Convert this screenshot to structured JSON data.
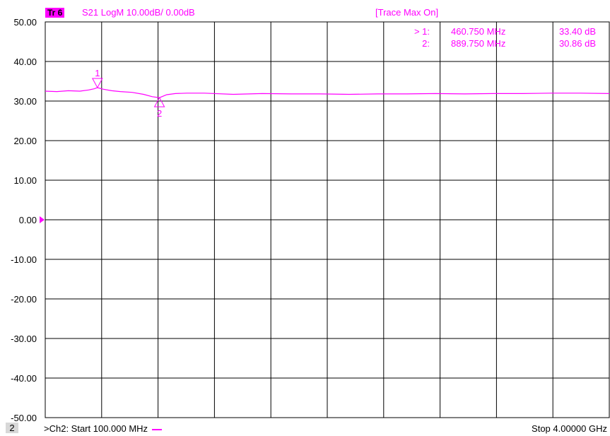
{
  "header": {
    "trace_badge": "Tr 6",
    "trace_label": "S21 LogM 10.00dB/  0.00dB",
    "trace_max": "[Trace Max On]"
  },
  "footer": {
    "channel_number": "2",
    "start_label": ">Ch2:  Start  100.000 MHz",
    "stop_label": "Stop  4.00000 GHz"
  },
  "colors": {
    "trace": "#ff00ff",
    "grid": "#000000",
    "background": "#ffffff"
  },
  "chart_data": {
    "type": "line",
    "title": "",
    "xlabel": "",
    "ylabel": "",
    "xlim_mhz": [
      100,
      4000
    ],
    "ylim": [
      -50,
      50
    ],
    "x_divisions": 10,
    "y_ticks": [
      "50.00",
      "40.00",
      "30.00",
      "20.00",
      "10.00",
      "0.00",
      "-10.00",
      "-20.00",
      "-30.00",
      "-40.00",
      "-50.00"
    ],
    "reference_level": 0,
    "grid": true,
    "series": [
      {
        "x_mhz": [
          100,
          180,
          260,
          340,
          400,
          440,
          460.75,
          500,
          560,
          620,
          700,
          780,
          840,
          889.75,
          940,
          1000,
          1080,
          1200,
          1400,
          1600,
          1800,
          2000,
          2200,
          2400,
          2600,
          2800,
          3000,
          3200,
          3400,
          3600,
          3800,
          4000
        ],
        "values_db": [
          32.5,
          32.4,
          32.6,
          32.5,
          32.8,
          33.1,
          33.4,
          33.0,
          32.6,
          32.4,
          32.2,
          31.7,
          31.1,
          30.86,
          31.6,
          31.9,
          32.0,
          32.0,
          31.7,
          31.9,
          31.8,
          31.8,
          31.7,
          31.8,
          31.8,
          31.9,
          31.8,
          31.9,
          31.9,
          32.0,
          32.0,
          31.9
        ]
      }
    ],
    "markers": [
      {
        "id": "1",
        "active_prefix": ">",
        "label": "1:",
        "freq": "460.750 MHz",
        "value": "33.40 dB",
        "x_mhz": 460.75,
        "y_db": 33.4,
        "side": "above"
      },
      {
        "id": "2",
        "active_prefix": "",
        "label": "2:",
        "freq": "889.750 MHz",
        "value": "30.86 dB",
        "x_mhz": 889.75,
        "y_db": 30.86,
        "side": "below"
      }
    ]
  }
}
